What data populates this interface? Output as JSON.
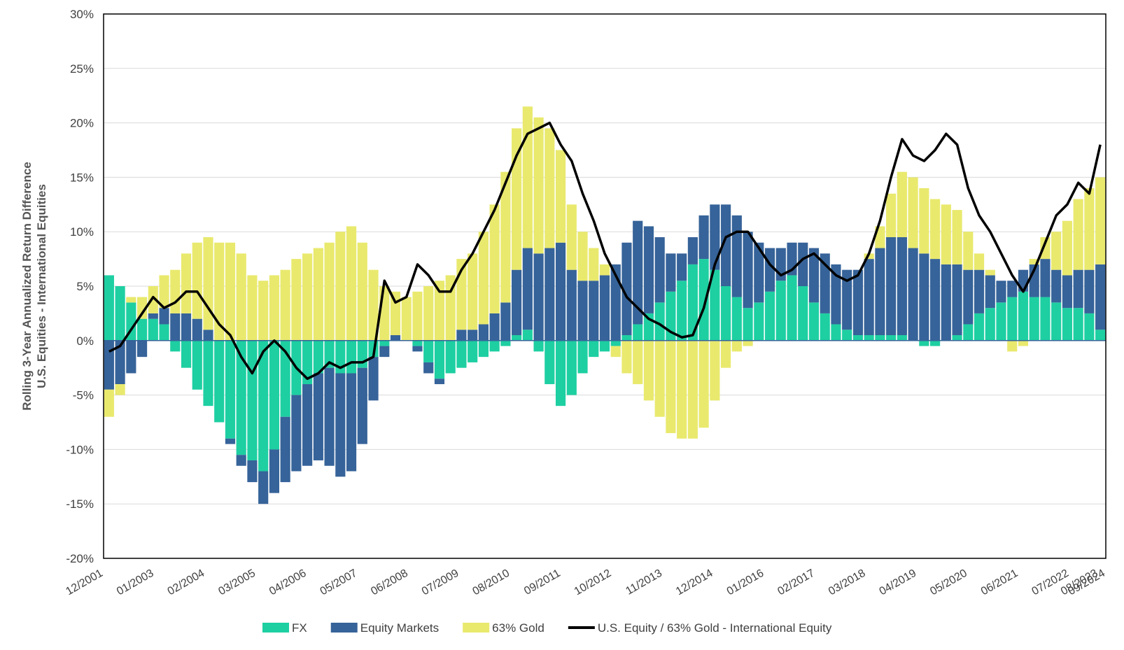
{
  "chart_data": {
    "type": "bar",
    "subtype": "stacked bar with line overlay",
    "title": "",
    "ylabel_line1": "Rolling 3-Year Annualized Return Difference",
    "ylabel_line2": "U.S. Equities - International Equities",
    "xlabel": "",
    "ylim": [
      -20,
      30
    ],
    "ytick_step": 5,
    "ytick_labels": [
      "-20%",
      "-15%",
      "-10%",
      "-5%",
      "0%",
      "5%",
      "10%",
      "15%",
      "20%",
      "25%",
      "30%"
    ],
    "grid": "horizontal",
    "legend_position": "bottom",
    "x_start": "12/2001",
    "x_end": "12/2024",
    "xtick_labels": [
      "12/2001",
      "01/2003",
      "02/2004",
      "03/2005",
      "04/2006",
      "05/2007",
      "06/2008",
      "07/2009",
      "08/2010",
      "09/2011",
      "10/2012",
      "11/2013",
      "12/2014",
      "01/2016",
      "02/2017",
      "03/2018",
      "04/2019",
      "05/2020",
      "06/2021",
      "07/2022",
      "08/2023",
      "09/2024"
    ],
    "x_anchor_dates": [
      "12/2001",
      "02/2003",
      "04/2004",
      "06/2005",
      "08/2006",
      "10/2007",
      "12/2008",
      "02/2010",
      "04/2011",
      "06/2012",
      "08/2013",
      "10/2014",
      "12/2015",
      "02/2017",
      "04/2018",
      "06/2019",
      "08/2020",
      "10/2021",
      "12/2022",
      "02/2024",
      "10/2024",
      "12/2024"
    ],
    "series": [
      {
        "name": "FX",
        "color": "#1ecfa2",
        "style": "bar",
        "values": [
          6.0,
          5.0,
          3.5,
          2.0,
          2.0,
          1.5,
          -1.0,
          -2.5,
          -4.5,
          -6.0,
          -7.5,
          -9.0,
          -10.5,
          -11.0,
          -12.0,
          -10.0,
          -7.0,
          -5.0,
          -4.0,
          -3.0,
          -2.5,
          -3.0,
          -3.0,
          -2.5,
          -1.5,
          -0.5,
          0.0,
          0.0,
          -0.5,
          -2.0,
          -3.5,
          -3.0,
          -2.5,
          -2.0,
          -1.5,
          -1.0,
          -0.5,
          0.5,
          1.0,
          -1.0,
          -4.0,
          -6.0,
          -5.0,
          -3.0,
          -1.5,
          -1.0,
          -0.5,
          0.5,
          1.5,
          2.5,
          3.5,
          4.5,
          5.5,
          7.0,
          7.5,
          6.5,
          5.0,
          4.0,
          3.0,
          3.5,
          4.5,
          5.5,
          6.0,
          5.0,
          3.5,
          2.5,
          1.5,
          1.0,
          0.5,
          0.5,
          0.5,
          0.5,
          0.5,
          0.0,
          -0.5,
          -0.5,
          0.0,
          0.5,
          1.5,
          2.5,
          3.0,
          3.5,
          4.0,
          4.5,
          4.0,
          4.0,
          3.5,
          3.0,
          3.0,
          2.5,
          1.0
        ]
      },
      {
        "name": "Equity Markets",
        "color": "#366399",
        "style": "bar",
        "values": [
          -4.5,
          -4.0,
          -3.0,
          -1.5,
          0.5,
          1.5,
          2.5,
          2.5,
          2.0,
          1.0,
          0.0,
          -0.5,
          -1.0,
          -2.0,
          -3.0,
          -4.0,
          -6.0,
          -7.0,
          -7.5,
          -8.0,
          -9.0,
          -9.5,
          -9.0,
          -7.0,
          -4.0,
          -1.0,
          0.5,
          0.0,
          -0.5,
          -1.0,
          -0.5,
          0.0,
          1.0,
          1.0,
          1.5,
          2.5,
          3.5,
          6.0,
          7.5,
          8.0,
          8.5,
          9.0,
          6.5,
          5.5,
          5.5,
          6.0,
          7.0,
          8.5,
          9.5,
          8.0,
          6.0,
          3.5,
          2.5,
          2.5,
          4.0,
          6.0,
          7.5,
          7.5,
          7.0,
          5.5,
          4.0,
          3.0,
          3.0,
          4.0,
          5.0,
          5.5,
          5.5,
          5.5,
          6.0,
          7.0,
          8.0,
          9.0,
          9.0,
          8.5,
          8.0,
          7.5,
          7.0,
          6.5,
          5.0,
          4.0,
          3.0,
          2.0,
          1.5,
          2.0,
          3.0,
          3.5,
          3.0,
          3.0,
          3.5,
          4.0,
          6.0
        ]
      },
      {
        "name": "63% Gold",
        "color": "#e9e96e",
        "style": "bar",
        "values": [
          -2.5,
          -1.0,
          0.5,
          2.0,
          2.5,
          3.0,
          4.0,
          5.5,
          7.0,
          8.5,
          9.0,
          9.0,
          8.0,
          6.0,
          5.5,
          6.0,
          6.5,
          7.5,
          8.0,
          8.5,
          9.0,
          10.0,
          10.5,
          9.0,
          6.5,
          5.0,
          4.0,
          4.0,
          4.5,
          5.0,
          5.5,
          6.0,
          6.5,
          7.0,
          8.5,
          10.0,
          12.0,
          13.0,
          13.0,
          12.5,
          11.0,
          8.5,
          6.0,
          4.5,
          3.0,
          1.0,
          -1.0,
          -3.0,
          -4.0,
          -5.5,
          -7.0,
          -8.5,
          -9.0,
          -9.0,
          -8.0,
          -5.5,
          -2.5,
          -1.0,
          -0.5,
          0.0,
          0.0,
          0.0,
          0.0,
          0.0,
          0.0,
          0.0,
          0.0,
          0.0,
          0.0,
          0.5,
          2.0,
          4.0,
          6.0,
          6.5,
          6.0,
          5.5,
          5.5,
          5.0,
          3.5,
          1.5,
          0.5,
          0.0,
          -1.0,
          -0.5,
          0.5,
          2.0,
          3.5,
          5.0,
          6.5,
          7.5,
          8.0
        ]
      },
      {
        "name": "U.S. Equity / 63% Gold - International Equity",
        "color": "#000000",
        "style": "line",
        "values": [
          -1.0,
          -0.5,
          1.0,
          2.5,
          4.0,
          3.0,
          3.5,
          4.5,
          4.5,
          3.0,
          1.5,
          0.5,
          -1.5,
          -3.0,
          -1.0,
          0.0,
          -1.0,
          -2.5,
          -3.5,
          -3.0,
          -2.0,
          -2.5,
          -2.0,
          -2.0,
          -1.5,
          5.5,
          3.5,
          4.0,
          7.0,
          6.0,
          4.5,
          4.5,
          6.5,
          8.0,
          10.0,
          12.0,
          14.5,
          17.0,
          19.0,
          19.5,
          20.0,
          18.0,
          16.5,
          13.5,
          11.0,
          8.0,
          6.0,
          4.0,
          3.0,
          2.0,
          1.5,
          0.8,
          0.3,
          0.5,
          3.0,
          7.0,
          9.5,
          10.0,
          10.0,
          8.5,
          7.0,
          6.0,
          6.5,
          7.5,
          8.0,
          7.0,
          6.0,
          5.5,
          6.0,
          8.0,
          11.0,
          15.0,
          18.5,
          17.0,
          16.5,
          17.5,
          19.0,
          18.0,
          14.0,
          11.5,
          10.0,
          8.0,
          6.0,
          4.5,
          6.5,
          9.0,
          11.5,
          12.5,
          14.5,
          13.5,
          18.0
        ]
      }
    ]
  }
}
